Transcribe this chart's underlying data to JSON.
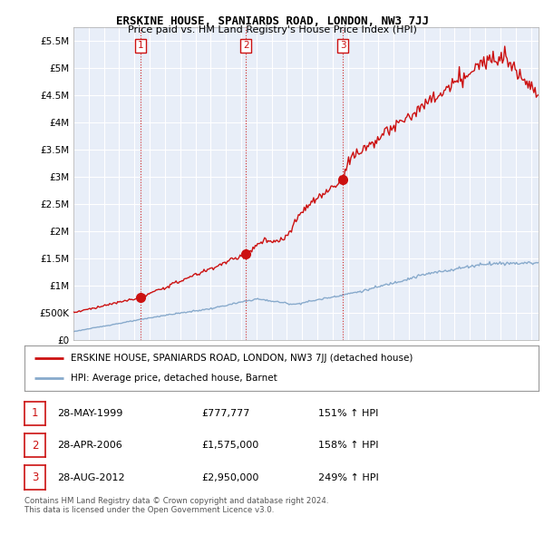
{
  "title": "ERSKINE HOUSE, SPANIARDS ROAD, LONDON, NW3 7JJ",
  "subtitle": "Price paid vs. HM Land Registry's House Price Index (HPI)",
  "ylim": [
    0,
    5750000
  ],
  "yticks": [
    0,
    500000,
    1000000,
    1500000,
    2000000,
    2500000,
    3000000,
    3500000,
    4000000,
    4500000,
    5000000,
    5500000
  ],
  "ytick_labels": [
    "£0",
    "£500K",
    "£1M",
    "£1.5M",
    "£2M",
    "£2.5M",
    "£3M",
    "£3.5M",
    "£4M",
    "£4.5M",
    "£5M",
    "£5.5M"
  ],
  "background_color": "#ffffff",
  "plot_bg_color": "#e8eef8",
  "grid_color": "#ffffff",
  "red_color": "#cc1111",
  "blue_color": "#88aacc",
  "sale_color": "#cc1111",
  "sales": [
    {
      "year": 1999.41,
      "price": 777777,
      "label": "1"
    },
    {
      "year": 2006.32,
      "price": 1575000,
      "label": "2"
    },
    {
      "year": 2012.66,
      "price": 2950000,
      "label": "3"
    }
  ],
  "legend_red": "ERSKINE HOUSE, SPANIARDS ROAD, LONDON, NW3 7JJ (detached house)",
  "legend_blue": "HPI: Average price, detached house, Barnet",
  "table_rows": [
    [
      "1",
      "28-MAY-1999",
      "£777,777",
      "151% ↑ HPI"
    ],
    [
      "2",
      "28-APR-2006",
      "£1,575,000",
      "158% ↑ HPI"
    ],
    [
      "3",
      "28-AUG-2012",
      "£2,950,000",
      "249% ↑ HPI"
    ]
  ],
  "footer": "Contains HM Land Registry data © Crown copyright and database right 2024.\nThis data is licensed under the Open Government Licence v3.0.",
  "xmin": 1995,
  "xmax": 2025.5
}
